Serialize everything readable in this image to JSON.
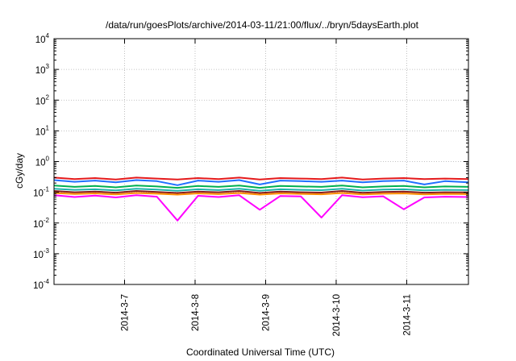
{
  "chart_data": {
    "type": "line",
    "title": "/data/run/goesPlots/archive/2014-03-11/21:00/flux/../bryn/5daysEarth.plot",
    "xlabel": "Coordinated Universal Time (UTC)",
    "ylabel": "cGy/day",
    "y_scale": "log",
    "ylim": [
      0.0001,
      10000
    ],
    "y_ticks": [
      {
        "base": "10",
        "exp": "-4"
      },
      {
        "base": "10",
        "exp": "-3"
      },
      {
        "base": "10",
        "exp": "-2"
      },
      {
        "base": "10",
        "exp": "-1"
      },
      {
        "base": "10",
        "exp": "0"
      },
      {
        "base": "10",
        "exp": "1"
      },
      {
        "base": "10",
        "exp": "2"
      },
      {
        "base": "10",
        "exp": "3"
      },
      {
        "base": "10",
        "exp": "4"
      }
    ],
    "xlim": [
      "2014-03-06T00:00",
      "2014-03-11T21:00"
    ],
    "x_ticks": [
      "2014-3-7",
      "2014-3-8",
      "2014-3-9",
      "2014-3-10",
      "2014-3-11"
    ],
    "x_tick_values": [
      "2014-03-07T00:00",
      "2014-03-08T00:00",
      "2014-03-09T00:00",
      "2014-03-10T00:00",
      "2014-03-11T00:00"
    ],
    "grid": true,
    "x": [
      "2014-03-06T00:00",
      "2014-03-06T07:00",
      "2014-03-06T14:00",
      "2014-03-06T21:00",
      "2014-03-07T04:00",
      "2014-03-07T11:00",
      "2014-03-07T18:00",
      "2014-03-08T01:00",
      "2014-03-08T08:00",
      "2014-03-08T15:00",
      "2014-03-08T22:00",
      "2014-03-09T05:00",
      "2014-03-09T12:00",
      "2014-03-09T19:00",
      "2014-03-10T02:00",
      "2014-03-10T09:00",
      "2014-03-10T16:00",
      "2014-03-10T23:00",
      "2014-03-11T06:00",
      "2014-03-11T13:00",
      "2014-03-11T21:00"
    ],
    "series": [
      {
        "color": "#e41a1c",
        "values": [
          0.3,
          0.27,
          0.29,
          0.26,
          0.3,
          0.28,
          0.26,
          0.29,
          0.27,
          0.3,
          0.26,
          0.29,
          0.28,
          0.27,
          0.3,
          0.26,
          0.28,
          0.29,
          0.27,
          0.28,
          0.27
        ]
      },
      {
        "color": "#1f6fff",
        "values": [
          0.25,
          0.22,
          0.24,
          0.21,
          0.25,
          0.23,
          0.17,
          0.24,
          0.22,
          0.25,
          0.18,
          0.24,
          0.23,
          0.22,
          0.24,
          0.21,
          0.23,
          0.24,
          0.18,
          0.23,
          0.21
        ]
      },
      {
        "color": "#00b050",
        "values": [
          0.165,
          0.15,
          0.16,
          0.145,
          0.165,
          0.155,
          0.14,
          0.16,
          0.15,
          0.165,
          0.14,
          0.16,
          0.155,
          0.15,
          0.165,
          0.145,
          0.155,
          0.16,
          0.145,
          0.155,
          0.15
        ]
      },
      {
        "color": "#20b2aa",
        "values": [
          0.13,
          0.12,
          0.125,
          0.115,
          0.13,
          0.122,
          0.112,
          0.125,
          0.118,
          0.13,
          0.112,
          0.125,
          0.12,
          0.117,
          0.13,
          0.114,
          0.122,
          0.125,
          0.115,
          0.12,
          0.118
        ]
      },
      {
        "color": "#8b1a1a",
        "values": [
          0.11,
          0.1,
          0.105,
          0.097,
          0.11,
          0.102,
          0.095,
          0.105,
          0.1,
          0.11,
          0.095,
          0.105,
          0.1,
          0.098,
          0.11,
          0.096,
          0.102,
          0.105,
          0.097,
          0.1,
          0.099
        ]
      },
      {
        "color": "#ff8c00",
        "values": [
          0.095,
          0.088,
          0.092,
          0.085,
          0.095,
          0.09,
          0.084,
          0.092,
          0.087,
          0.095,
          0.084,
          0.092,
          0.089,
          0.086,
          0.095,
          0.085,
          0.09,
          0.092,
          0.085,
          0.089,
          0.087
        ]
      },
      {
        "color": "#ff00ff",
        "values": [
          0.08,
          0.07,
          0.078,
          0.068,
          0.08,
          0.072,
          0.012,
          0.077,
          0.07,
          0.08,
          0.027,
          0.076,
          0.073,
          0.015,
          0.08,
          0.069,
          0.074,
          0.028,
          0.068,
          0.072,
          0.07
        ]
      }
    ]
  }
}
